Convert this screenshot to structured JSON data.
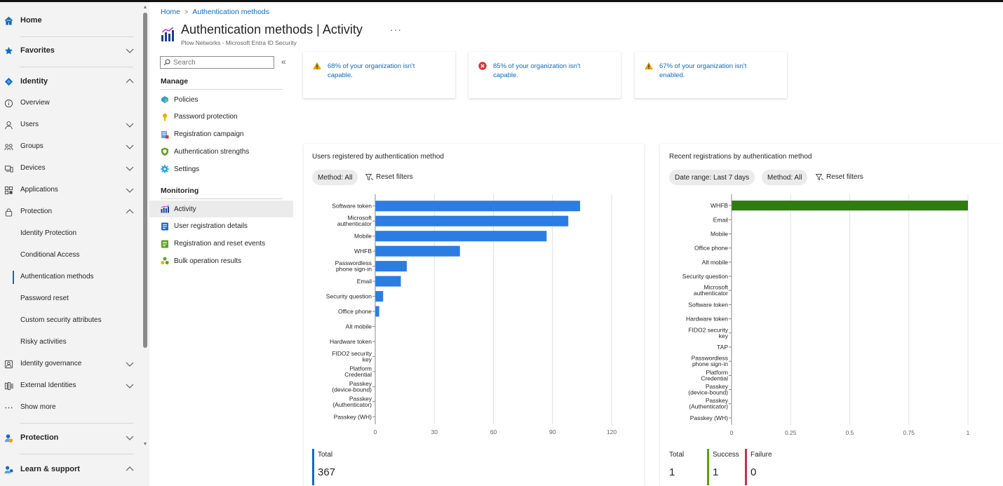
{
  "nav": {
    "top": [
      {
        "label": "Home",
        "icon": "home-icon"
      },
      {
        "label": "Favorites",
        "icon": "star-icon"
      },
      {
        "label": "Identity",
        "icon": "identity-icon"
      }
    ],
    "identity_items": [
      {
        "label": "Overview"
      },
      {
        "label": "Users"
      },
      {
        "label": "Groups"
      },
      {
        "label": "Devices"
      },
      {
        "label": "Applications"
      },
      {
        "label": "Protection"
      }
    ],
    "protection_items": [
      {
        "label": "Identity Protection"
      },
      {
        "label": "Conditional Access"
      },
      {
        "label": "Authentication methods"
      },
      {
        "label": "Password reset"
      },
      {
        "label": "Custom security attributes"
      },
      {
        "label": "Risky activities"
      }
    ],
    "more_items": [
      {
        "label": "Identity governance"
      },
      {
        "label": "External Identities"
      },
      {
        "label": "Show more"
      }
    ],
    "bottom": [
      {
        "label": "Protection"
      },
      {
        "label": "Learn & support"
      }
    ]
  },
  "breadcrumb": {
    "home": "Home",
    "current": "Authentication methods"
  },
  "page": {
    "title": "Authentication methods",
    "title_suffix": "| Activity",
    "subtitle": "Plow Networks - Microsoft Entra ID Security",
    "more": "···"
  },
  "menu": {
    "search_placeholder": "Search",
    "collapse": "«",
    "manage_label": "Manage",
    "manage_items": [
      {
        "label": "Policies"
      },
      {
        "label": "Password protection"
      },
      {
        "label": "Registration campaign"
      },
      {
        "label": "Authentication strengths"
      },
      {
        "label": "Settings"
      }
    ],
    "monitoring_label": "Monitoring",
    "monitoring_items": [
      {
        "label": "Activity"
      },
      {
        "label": "User registration details"
      },
      {
        "label": "Registration and reset events"
      },
      {
        "label": "Bulk operation results"
      }
    ]
  },
  "warnings": [
    {
      "text": "68% of your organization isn't capable.",
      "severity": "warning"
    },
    {
      "text": "85% of your organization isn't capable.",
      "severity": "error"
    },
    {
      "text": "67% of your organization isn't enabled.",
      "severity": "warning"
    }
  ],
  "panel_left": {
    "title": "Users registered by authentication method",
    "filter_method": "Method: All",
    "reset": "Reset filters",
    "stats": [
      {
        "label": "Total",
        "value": "367"
      }
    ]
  },
  "panel_right": {
    "title": "Recent registrations by authentication method",
    "filter_date": "Date range: Last 7 days",
    "filter_method": "Method: All",
    "reset": "Reset filters",
    "stats": [
      {
        "label": "Total",
        "value": "1"
      },
      {
        "label": "Success",
        "value": "1"
      },
      {
        "label": "Failure",
        "value": "0"
      }
    ]
  },
  "colors": {
    "accent": "#0f6cbd",
    "bar_blue": "#2b7de3",
    "bar_green": "#2f7d10",
    "success": "#57a300",
    "failure": "#c4314b",
    "total": "#0f6cbd",
    "warning": "#e2a200",
    "error": "#d13438"
  },
  "chart_data": [
    {
      "type": "bar",
      "orientation": "horizontal",
      "title": "Users registered by authentication method",
      "categories": [
        "Software token",
        "Microsoft authenticator",
        "Mobile",
        "WHFB",
        "Passwordless phone sign-in",
        "Email",
        "Security question",
        "Office phone",
        "Alt mobile",
        "Hardware token",
        "FIDO2 security key",
        "Platform Credential",
        "Passkey (device-bound)",
        "Passkey (Authenticator)",
        "Passkey (WH)"
      ],
      "values": [
        104,
        98,
        87,
        43,
        16,
        13,
        4,
        2,
        0,
        0,
        0,
        0,
        0,
        0,
        0
      ],
      "xlim": [
        0,
        120
      ],
      "xticks": [
        0,
        30,
        60,
        90,
        120
      ],
      "grid": true
    },
    {
      "type": "bar",
      "orientation": "horizontal",
      "title": "Recent registrations by authentication method",
      "categories": [
        "WHFB",
        "Email",
        "Mobile",
        "Office phone",
        "Alt mobile",
        "Security question",
        "Microsoft authenticator",
        "Software token",
        "Hardware token",
        "FIDO2 security key",
        "TAP",
        "Passwordless phone sign-in",
        "Platform Credential",
        "Passkey (device-bound)",
        "Passkey (Authenticator)",
        "Passkey (WH)"
      ],
      "values": [
        1,
        0,
        0,
        0,
        0,
        0,
        0,
        0,
        0,
        0,
        0,
        0,
        0,
        0,
        0,
        0
      ],
      "xlim": [
        0,
        1
      ],
      "xticks": [
        "0",
        "0.25",
        "0.5",
        "0.75",
        "1"
      ],
      "grid": true
    }
  ]
}
